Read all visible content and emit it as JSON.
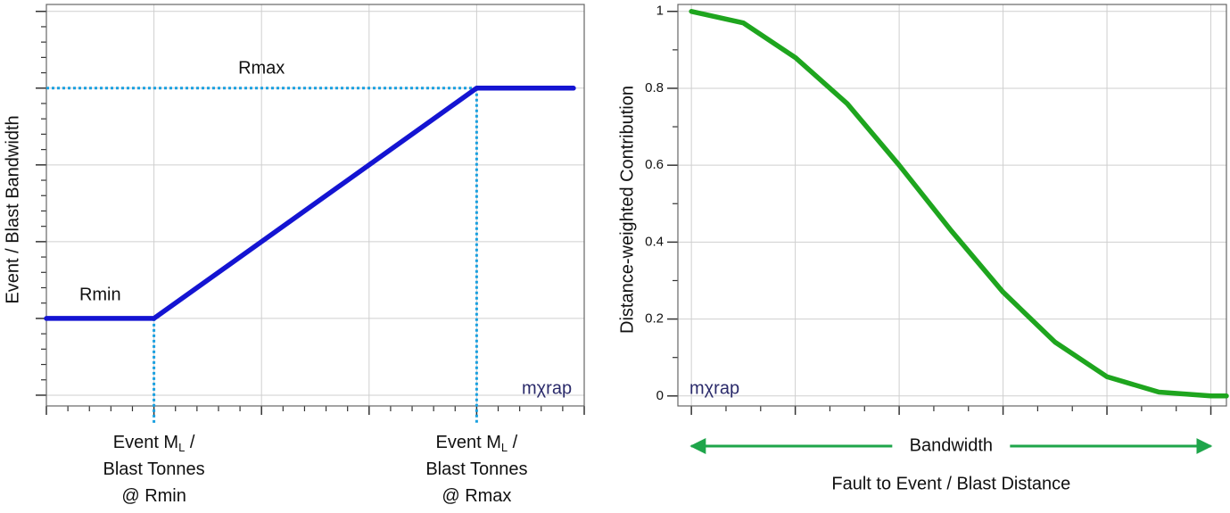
{
  "chart_data": [
    {
      "type": "line",
      "y_label": "Event / Blast Bandwidth",
      "x": [
        0,
        1,
        4,
        4.9
      ],
      "series": [
        {
          "color": "#1414d2",
          "values": [
            1,
            1,
            4,
            4
          ]
        }
      ],
      "xlim": [
        0,
        5
      ],
      "ylim": [
        -0.14,
        5.09
      ],
      "xticks": [
        0,
        1,
        2,
        3,
        4,
        5
      ],
      "yticks": [
        0,
        1,
        2,
        3,
        4,
        5
      ],
      "show_tick_labels": false,
      "grid": true,
      "ref_color": "#1aa0e0",
      "vlines": [
        1,
        4
      ],
      "hline": 4,
      "annotations": [
        {
          "text": "Rmin",
          "x": 0.5,
          "y": 1.3
        },
        {
          "text": "Rmax",
          "x": 2,
          "y": 4.25
        }
      ],
      "x_annotations": [
        {
          "x": 1,
          "lines": [
            [
              "Event M",
              "L",
              " /"
            ],
            [
              "Blast Tonnes"
            ],
            [
              "@ Rmin"
            ]
          ]
        },
        {
          "x": 4,
          "lines": [
            [
              "Event M",
              "L",
              " /"
            ],
            [
              "Blast Tonnes"
            ],
            [
              "@ Rmax"
            ]
          ]
        }
      ],
      "watermark": "mχrap"
    },
    {
      "type": "line",
      "y_label": "Distance-weighted Contribution",
      "x_label": "Fault to Event / Blast Distance",
      "span_label": "Bandwidth",
      "span": [
        0,
        5
      ],
      "x": [
        0,
        0.5,
        1,
        1.5,
        2,
        2.5,
        3,
        3.5,
        4,
        4.5,
        5,
        5.15
      ],
      "series": [
        {
          "color": "#1ea51e",
          "values": [
            1,
            0.97,
            0.88,
            0.76,
            0.6,
            0.43,
            0.27,
            0.14,
            0.05,
            0.01,
            0,
            0
          ]
        }
      ],
      "xlim": [
        -0.13,
        5.15
      ],
      "ylim": [
        -0.026,
        1.018
      ],
      "xticks": [
        0,
        1,
        2,
        3,
        4,
        5
      ],
      "yticks": [
        0,
        0.2,
        0.4,
        0.6,
        0.8,
        1
      ],
      "show_tick_labels": true,
      "grid": true,
      "watermark": "mχrap"
    }
  ]
}
